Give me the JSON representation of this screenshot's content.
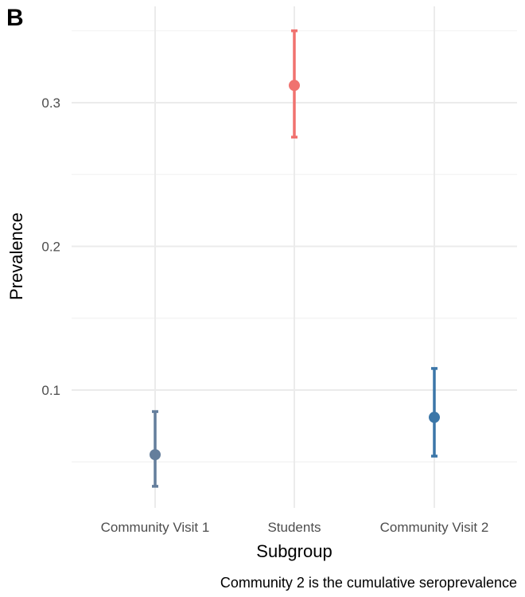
{
  "panel_label": "B",
  "caption": "Community 2 is the cumulative seroprevalence",
  "chart_data": {
    "type": "scatter",
    "subtype": "point-with-error-bars",
    "xlabel": "Subgroup",
    "ylabel": "Prevalence",
    "categories": [
      "Community Visit 1",
      "Students",
      "Community Visit 2"
    ],
    "points": [
      {
        "category": "Community Visit 1",
        "estimate": 0.055,
        "lower": 0.033,
        "upper": 0.085,
        "color": "#647e9c"
      },
      {
        "category": "Students",
        "estimate": 0.312,
        "lower": 0.276,
        "upper": 0.35,
        "color": "#f0726f"
      },
      {
        "category": "Community Visit 2",
        "estimate": 0.081,
        "lower": 0.054,
        "upper": 0.115,
        "color": "#3b76a8"
      }
    ],
    "y_ticks": [
      0.1,
      0.2,
      0.3
    ],
    "y_tick_labels": [
      "0.1",
      "0.2",
      "0.3"
    ],
    "ylim": [
      0.018,
      0.367
    ],
    "grid": true,
    "legend": "none",
    "theme": "minimal"
  }
}
